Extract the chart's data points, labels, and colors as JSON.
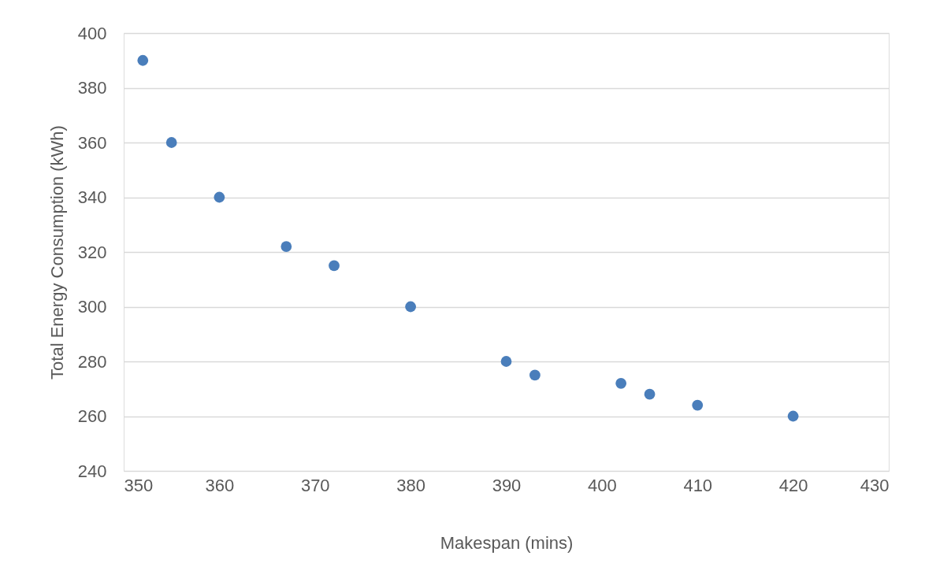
{
  "chart_data": {
    "type": "scatter",
    "xlabel": "Makespan (mins)",
    "ylabel": "Total Energy Consumption (kWh)",
    "x": [
      352,
      355,
      360,
      367,
      372,
      380,
      390,
      393,
      402,
      405,
      410,
      420
    ],
    "series": [
      {
        "color": "#4a7ebb",
        "values": [
          390,
          360,
          340,
          322,
          315,
          300,
          280,
          275,
          272,
          268,
          264,
          260
        ]
      }
    ],
    "xlim": [
      350,
      430
    ],
    "xticks": [
      350,
      360,
      370,
      380,
      390,
      400,
      410,
      420,
      430
    ],
    "ylim": [
      240,
      400
    ],
    "yticks": [
      240,
      260,
      280,
      300,
      320,
      340,
      360,
      380,
      400
    ],
    "grid": "y"
  }
}
